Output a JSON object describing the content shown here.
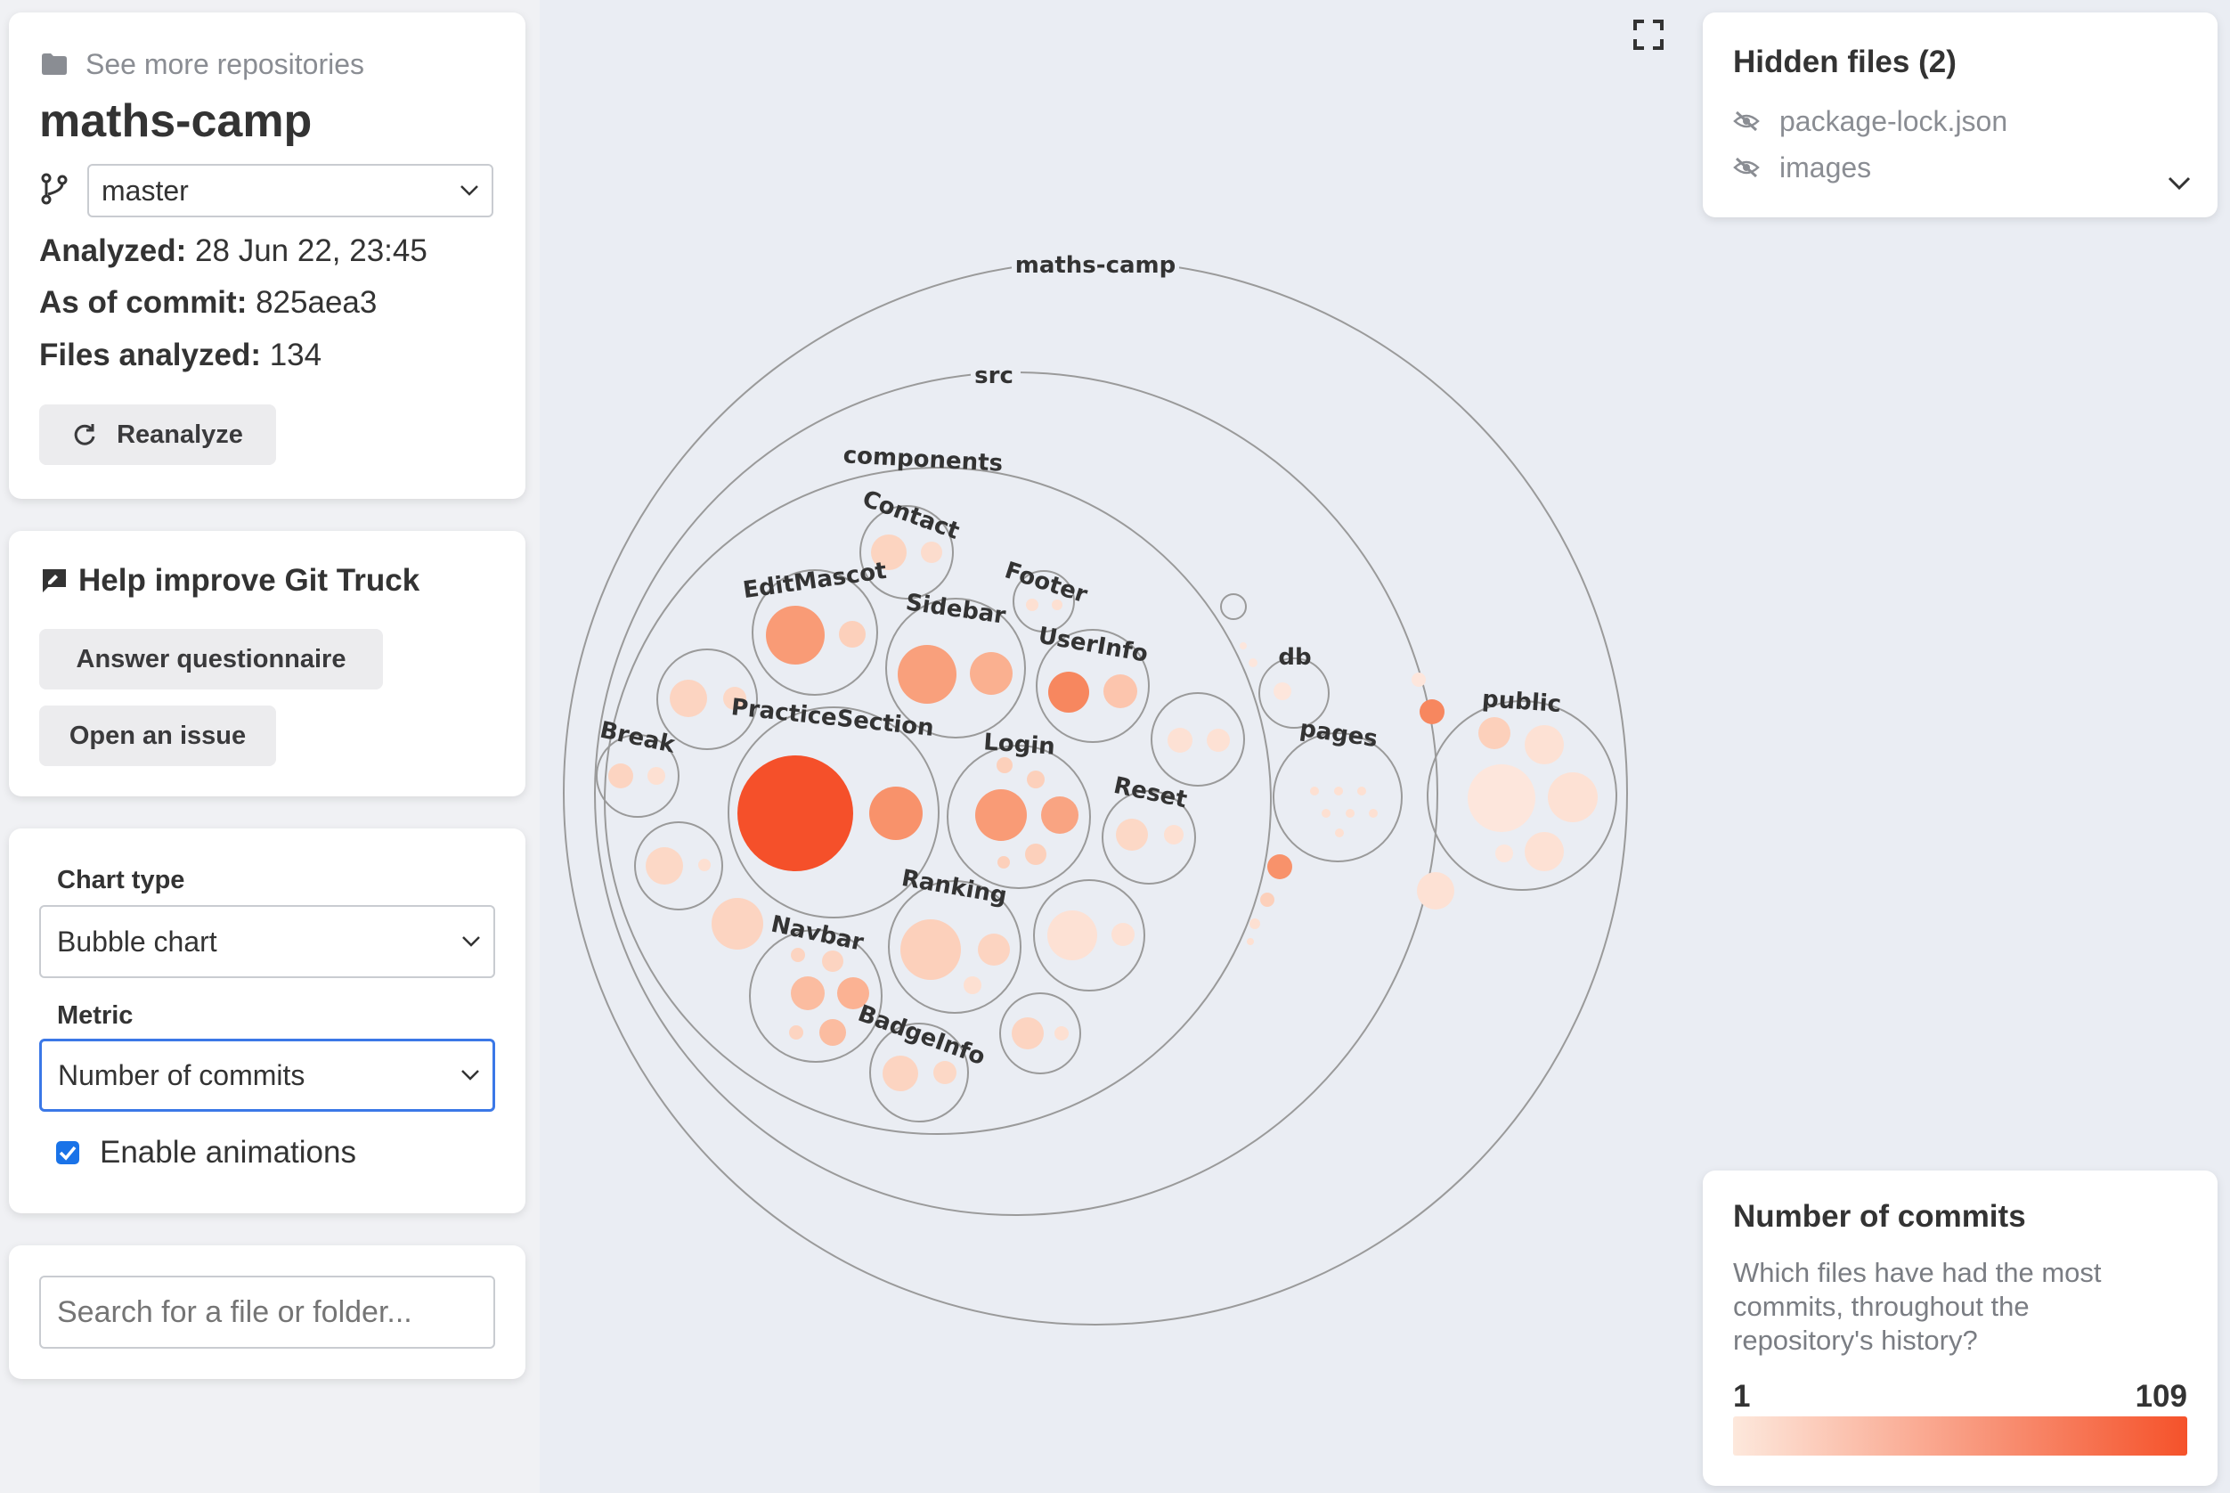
{
  "repo": {
    "see_more_label": "See more repositories",
    "name": "maths-camp",
    "branch": "master",
    "analyzed_label": "Analyzed:",
    "analyzed_value": "28 Jun 22, 23:45",
    "commit_label": "As of commit:",
    "commit_value": "825aea3",
    "files_label": "Files analyzed:",
    "files_value": "134",
    "reanalyze_label": "Reanalyze"
  },
  "help": {
    "title": "Help improve Git Truck",
    "questionnaire_label": "Answer questionnaire",
    "issue_label": "Open an issue"
  },
  "options": {
    "chart_type_label": "Chart type",
    "chart_type_value": "Bubble chart",
    "metric_label": "Metric",
    "metric_value": "Number of commits",
    "animations_label": "Enable animations",
    "animations_checked": true
  },
  "search": {
    "placeholder": "Search for a file or folder..."
  },
  "hidden_files": {
    "title": "Hidden files (2)",
    "items": [
      "package-lock.json",
      "images"
    ]
  },
  "legend": {
    "title": "Number of commits",
    "description_lines": [
      "Which files have had the most",
      "commits, throughout the",
      "repository's history?"
    ],
    "min": "1",
    "max": "109",
    "gradient_start": "#fde8dc",
    "gradient_end": "#f5522a"
  },
  "bubble_labels": {
    "root": "maths-camp",
    "src": "src",
    "components": "components",
    "contact": "Contact",
    "editmascot": "EditMascot",
    "sidebar": "Sidebar",
    "footer": "Footer",
    "userinfo": "UserInfo",
    "break": "Break",
    "practicesection": "PracticeSection",
    "login": "Login",
    "reset": "Reset",
    "ranking": "Ranking",
    "navbar": "Navbar",
    "badgeinfo": "BadgeInfo",
    "db": "db",
    "pages": "pages",
    "public": "public"
  }
}
